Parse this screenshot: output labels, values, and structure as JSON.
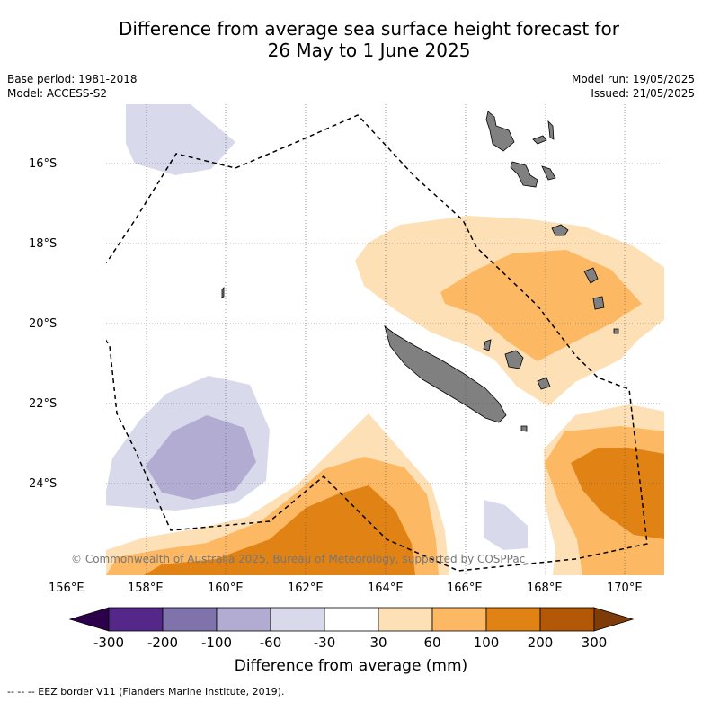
{
  "title_line1": "Difference from average sea surface height forecast for",
  "title_line2": "26 May to 1 June 2025",
  "base_period": "Base period: 1981-2018",
  "model": "Model: ACCESS-S2",
  "model_run": "Model run: 19/05/2025",
  "issued": "Issued: 21/05/2025",
  "lat_labels": [
    "16°S",
    "18°S",
    "20°S",
    "22°S",
    "24°S"
  ],
  "lon_labels": [
    "156°E",
    "158°E",
    "160°E",
    "162°E",
    "164°E",
    "166°E",
    "168°E",
    "170°E"
  ],
  "copyright": "© Commonwealth of Australia 2025, Bureau of Meteorology, supported by COSPPac",
  "colorbar": {
    "title": "Difference from average (mm)",
    "ticks": [
      "-300",
      "-200",
      "-100",
      "-60",
      "-30",
      "30",
      "60",
      "100",
      "200",
      "300"
    ],
    "colors": [
      "#2d004b",
      "#542788",
      "#8073ac",
      "#b2abd2",
      "#d8daeb",
      "#ffffff",
      "#fee0b6",
      "#fdb863",
      "#e08214",
      "#b35806",
      "#7f3b08"
    ]
  },
  "footer": "--  --  -- EEZ border V11 (Flanders Marine Institute, 2019)."
}
